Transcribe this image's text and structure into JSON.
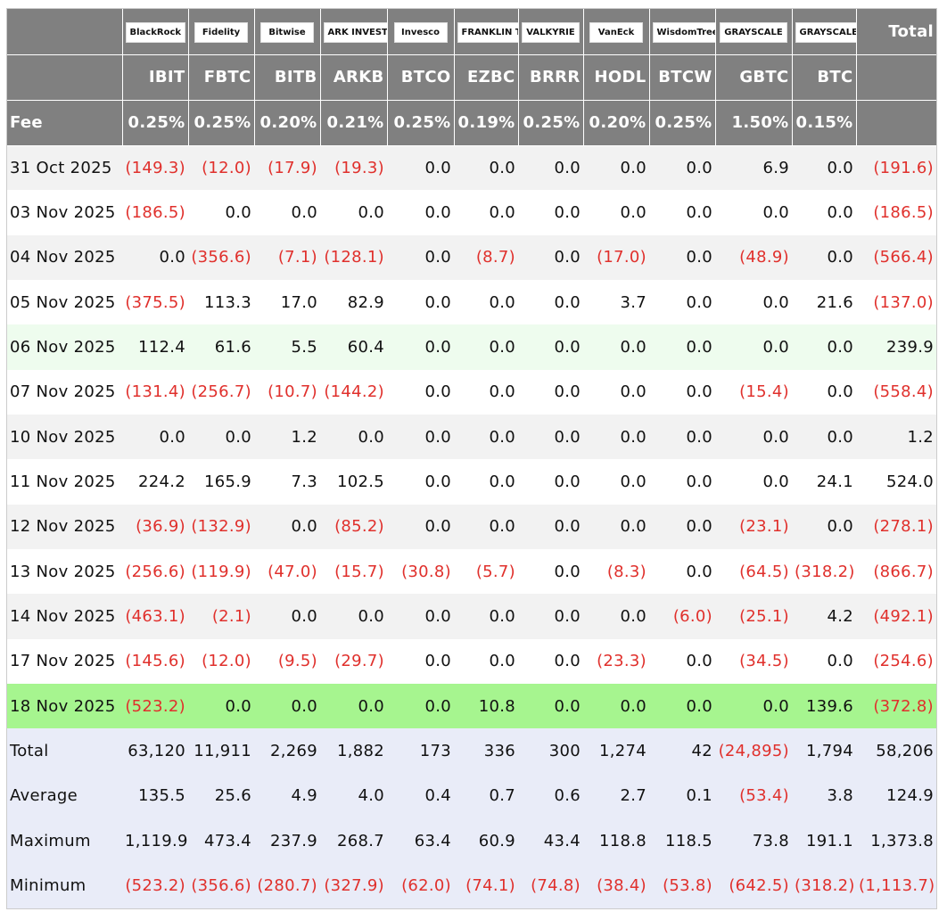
{
  "table": {
    "logos": [
      "BlackRock",
      "Fidelity",
      "Bitwise",
      "ARK INVEST",
      "Invesco",
      "FRANKLIN TEMPLETON",
      "VALKYRIE",
      "VanEck",
      "WisdomTree",
      "GRAYSCALE",
      "GRAYSCALE"
    ],
    "total_header": "Total",
    "tickers": [
      "IBIT",
      "FBTC",
      "BITB",
      "ARKB",
      "BTCO",
      "EZBC",
      "BRRR",
      "HODL",
      "BTCW",
      "GBTC",
      "BTC"
    ],
    "fee_label": "Fee",
    "fees": [
      "0.25%",
      "0.25%",
      "0.20%",
      "0.21%",
      "0.25%",
      "0.19%",
      "0.25%",
      "0.20%",
      "0.25%",
      "1.50%",
      "0.15%"
    ],
    "rows": [
      [
        "31 Oct 2025",
        "(149.3)",
        "(12.0)",
        "(17.9)",
        "(19.3)",
        "0.0",
        "0.0",
        "0.0",
        "0.0",
        "0.0",
        "6.9",
        "0.0",
        "(191.6)"
      ],
      [
        "03 Nov 2025",
        "(186.5)",
        "0.0",
        "0.0",
        "0.0",
        "0.0",
        "0.0",
        "0.0",
        "0.0",
        "0.0",
        "0.0",
        "0.0",
        "(186.5)"
      ],
      [
        "04 Nov 2025",
        "0.0",
        "(356.6)",
        "(7.1)",
        "(128.1)",
        "0.0",
        "(8.7)",
        "0.0",
        "(17.0)",
        "0.0",
        "(48.9)",
        "0.0",
        "(566.4)"
      ],
      [
        "05 Nov 2025",
        "(375.5)",
        "113.3",
        "17.0",
        "82.9",
        "0.0",
        "0.0",
        "0.0",
        "3.7",
        "0.0",
        "0.0",
        "21.6",
        "(137.0)"
      ],
      [
        "06 Nov 2025",
        "112.4",
        "61.6",
        "5.5",
        "60.4",
        "0.0",
        "0.0",
        "0.0",
        "0.0",
        "0.0",
        "0.0",
        "0.0",
        "239.9"
      ],
      [
        "07 Nov 2025",
        "(131.4)",
        "(256.7)",
        "(10.7)",
        "(144.2)",
        "0.0",
        "0.0",
        "0.0",
        "0.0",
        "0.0",
        "(15.4)",
        "0.0",
        "(558.4)"
      ],
      [
        "10 Nov 2025",
        "0.0",
        "0.0",
        "1.2",
        "0.0",
        "0.0",
        "0.0",
        "0.0",
        "0.0",
        "0.0",
        "0.0",
        "0.0",
        "1.2"
      ],
      [
        "11 Nov 2025",
        "224.2",
        "165.9",
        "7.3",
        "102.5",
        "0.0",
        "0.0",
        "0.0",
        "0.0",
        "0.0",
        "0.0",
        "24.1",
        "524.0"
      ],
      [
        "12 Nov 2025",
        "(36.9)",
        "(132.9)",
        "0.0",
        "(85.2)",
        "0.0",
        "0.0",
        "0.0",
        "0.0",
        "0.0",
        "(23.1)",
        "0.0",
        "(278.1)"
      ],
      [
        "13 Nov 2025",
        "(256.6)",
        "(119.9)",
        "(47.0)",
        "(15.7)",
        "(30.8)",
        "(5.7)",
        "0.0",
        "(8.3)",
        "0.0",
        "(64.5)",
        "(318.2)",
        "(866.7)"
      ],
      [
        "14 Nov 2025",
        "(463.1)",
        "(2.1)",
        "0.0",
        "0.0",
        "0.0",
        "0.0",
        "0.0",
        "0.0",
        "(6.0)",
        "(25.1)",
        "4.2",
        "(492.1)"
      ],
      [
        "17 Nov 2025",
        "(145.6)",
        "(12.0)",
        "(9.5)",
        "(29.7)",
        "0.0",
        "0.0",
        "0.0",
        "(23.3)",
        "0.0",
        "(34.5)",
        "0.0",
        "(254.6)"
      ],
      [
        "18 Nov 2025",
        "(523.2)",
        "0.0",
        "0.0",
        "0.0",
        "0.0",
        "10.8",
        "0.0",
        "0.0",
        "0.0",
        "0.0",
        "139.6",
        "(372.8)"
      ]
    ],
    "summary": [
      [
        "Total",
        "63,120",
        "11,911",
        "2,269",
        "1,882",
        "173",
        "336",
        "300",
        "1,274",
        "42",
        "(24,895)",
        "1,794",
        "58,206"
      ],
      [
        "Average",
        "135.5",
        "25.6",
        "4.9",
        "4.0",
        "0.4",
        "0.7",
        "0.6",
        "2.7",
        "0.1",
        "(53.4)",
        "3.8",
        "124.9"
      ],
      [
        "Maximum",
        "1,119.9",
        "473.4",
        "237.9",
        "268.7",
        "63.4",
        "60.9",
        "43.4",
        "118.8",
        "118.5",
        "73.8",
        "191.1",
        "1,373.8"
      ],
      [
        "Minimum",
        "(523.2)",
        "(356.6)",
        "(280.7)",
        "(327.9)",
        "(62.0)",
        "(74.1)",
        "(74.8)",
        "(38.4)",
        "(53.8)",
        "(642.5)",
        "(318.2)",
        "(1,113.7)"
      ]
    ]
  }
}
